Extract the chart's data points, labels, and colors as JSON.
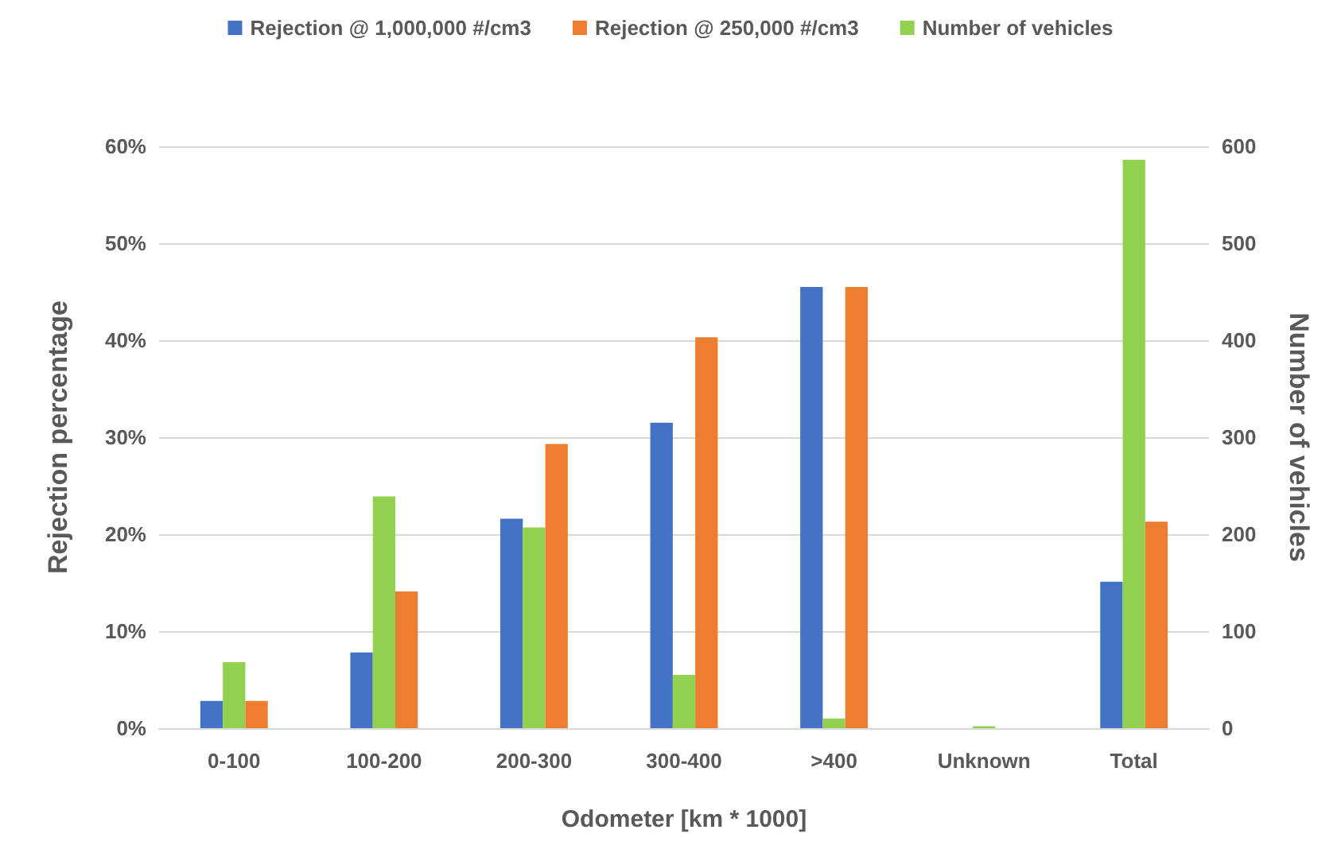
{
  "chart_data": {
    "type": "bar",
    "xlabel": "Odometer [km * 1000]",
    "ylabel": "Rejection percentage",
    "y2label": "Number of vehicles",
    "categories": [
      "0-100",
      "100-200",
      "200-300",
      "300-400",
      ">400",
      "Unknown",
      "Total"
    ],
    "series": [
      {
        "name": "Rejection @ 1,000,000 #/cm3",
        "color": "#4472c4",
        "values": [
          2.8,
          7.8,
          21.6,
          31.5,
          45.5,
          0,
          15.1
        ]
      },
      {
        "name": "Number of vehicles",
        "color": "#92d050",
        "axis": "y2",
        "values": [
          68,
          239,
          207,
          55,
          10,
          2,
          586
        ]
      },
      {
        "name": "Rejection @ 250,000 #/cm3",
        "color": "#ed7d31",
        "values": [
          2.8,
          14.1,
          29.3,
          40.3,
          45.5,
          0,
          21.3
        ]
      }
    ],
    "ylim": [
      0,
      60
    ],
    "yticks": [
      {
        "value": 0,
        "label": "0%"
      },
      {
        "value": 10,
        "label": "10%"
      },
      {
        "value": 20,
        "label": "20%"
      },
      {
        "value": 30,
        "label": "30%"
      },
      {
        "value": 40,
        "label": "40%"
      },
      {
        "value": 50,
        "label": "50%"
      },
      {
        "value": 60,
        "label": "60%"
      }
    ],
    "y2lim": [
      0,
      600
    ],
    "y2ticks": [
      0,
      100,
      200,
      300,
      400,
      500,
      600
    ],
    "grid": "y",
    "legend": "top"
  }
}
